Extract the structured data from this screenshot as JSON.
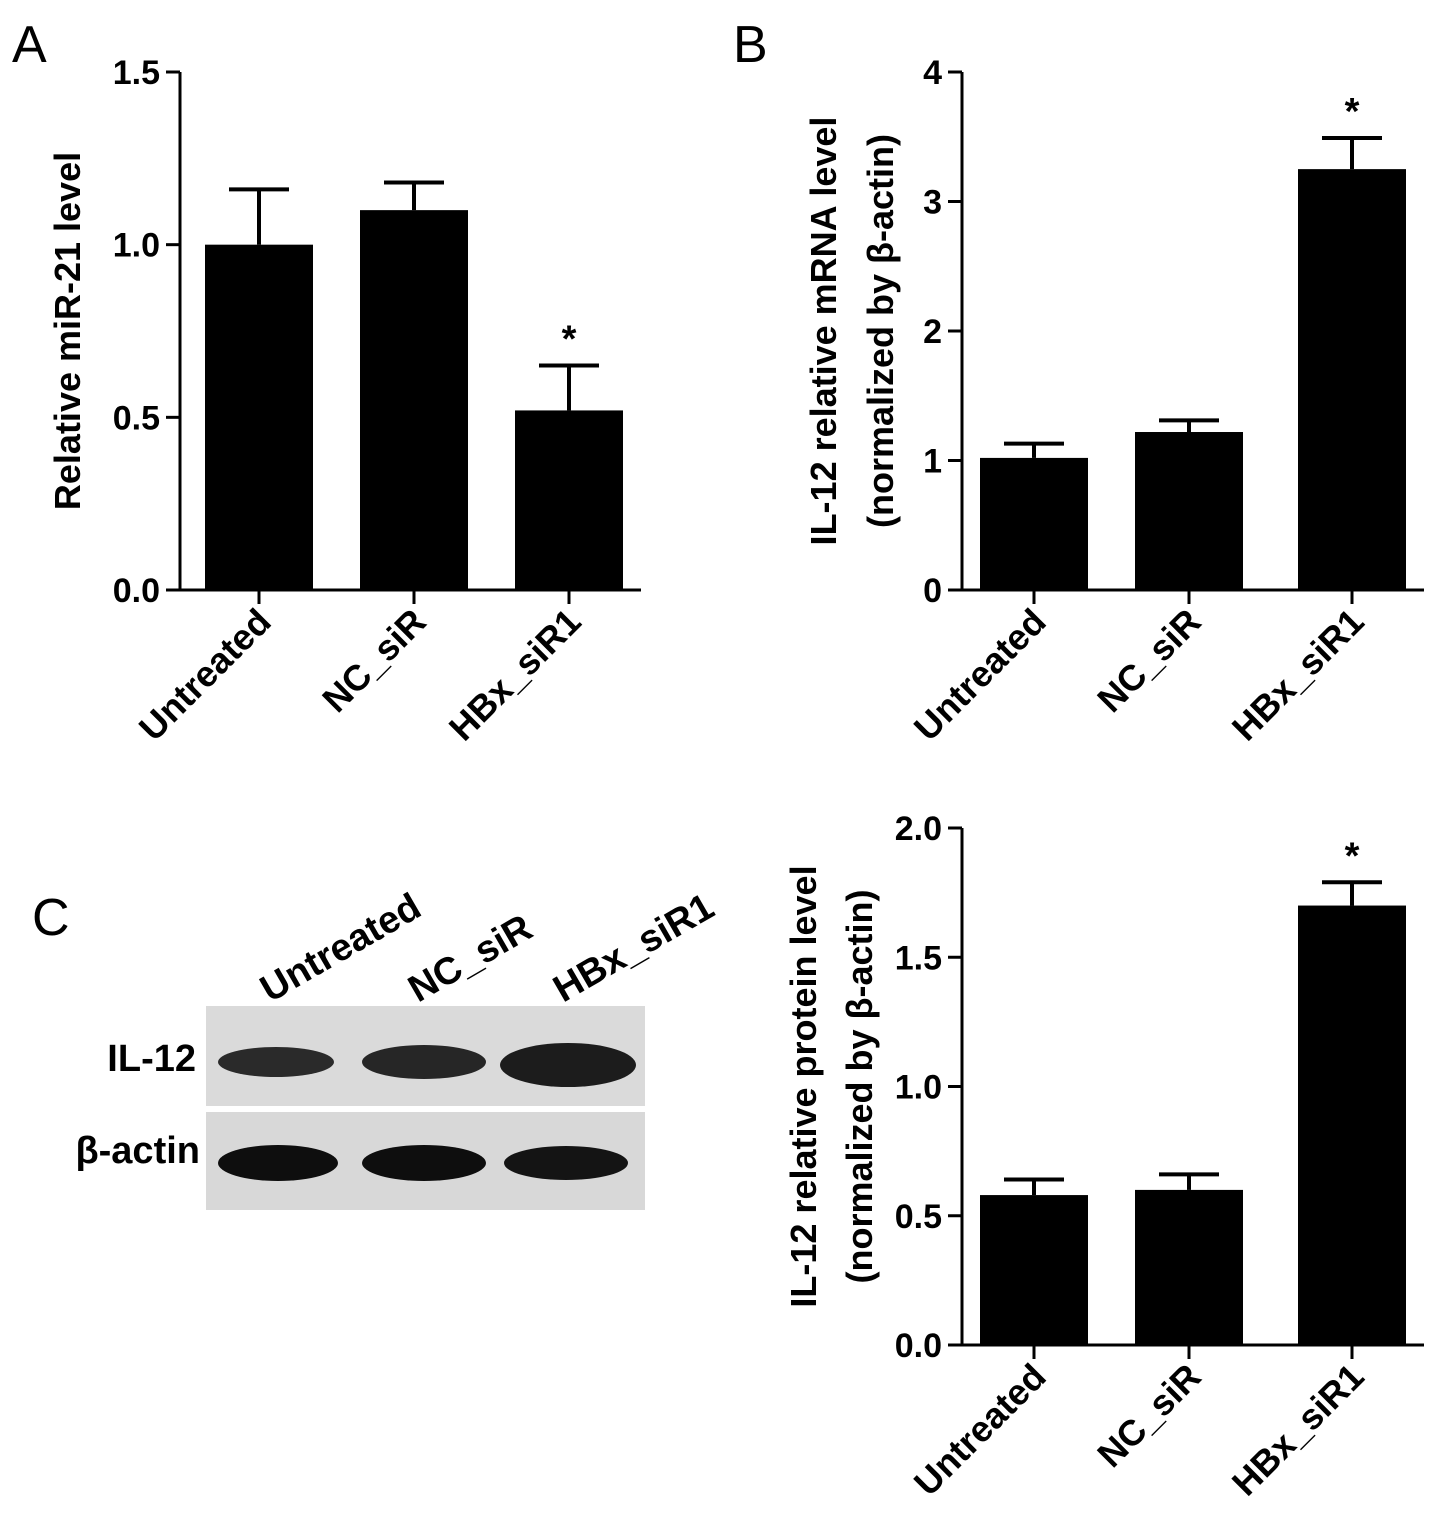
{
  "panels": {
    "a": {
      "letter": "A"
    },
    "b": {
      "letter": "B"
    },
    "c": {
      "letter": "C",
      "lanes": [
        "Untreated",
        "NC_siR",
        "HBx_siR1"
      ],
      "rows": [
        "IL-12",
        "β-actin"
      ]
    }
  },
  "colors": {
    "bar": "#000000",
    "axis": "#000000",
    "blot_bg": "#dcdcdc",
    "band": "#1a1a1a"
  },
  "chart_data": [
    {
      "type": "bar",
      "title": "",
      "xlabel": "",
      "ylabel": "Relative miR-21 level",
      "categories": [
        "Untreated",
        "NC_siR",
        "HBx_siR1"
      ],
      "values": [
        1.0,
        1.1,
        0.52
      ],
      "error": [
        0.16,
        0.08,
        0.13
      ],
      "annotations": [
        "",
        "",
        "*"
      ],
      "ylim": [
        0,
        1.5
      ],
      "yticks": [
        "0.0",
        "0.5",
        "1.0",
        "1.5"
      ],
      "grid": false
    },
    {
      "type": "bar",
      "title": "",
      "xlabel": "",
      "ylabel": "IL-12 relative mRNA level",
      "ylabel2": "(normalized by β-actin)",
      "categories": [
        "Untreated",
        "NC_siR",
        "HBx_siR1"
      ],
      "values": [
        1.02,
        1.22,
        3.25
      ],
      "error": [
        0.11,
        0.09,
        0.24
      ],
      "annotations": [
        "",
        "",
        "*"
      ],
      "ylim": [
        0,
        4
      ],
      "yticks": [
        "0",
        "1",
        "2",
        "3",
        "4"
      ],
      "grid": false
    },
    {
      "type": "bar",
      "title": "",
      "xlabel": "",
      "ylabel": "IL-12 relative protein level",
      "ylabel2": "(normalized by β-actin)",
      "categories": [
        "Untreated",
        "NC_siR",
        "HBx_siR1"
      ],
      "values": [
        0.58,
        0.6,
        1.7
      ],
      "error": [
        0.06,
        0.06,
        0.09
      ],
      "annotations": [
        "",
        "",
        "*"
      ],
      "ylim": [
        0,
        2.0
      ],
      "yticks": [
        "0.0",
        "0.5",
        "1.0",
        "1.5",
        "2.0"
      ],
      "grid": false
    }
  ]
}
